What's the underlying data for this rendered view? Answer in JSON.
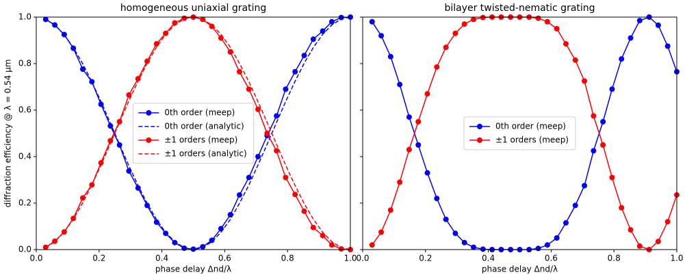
{
  "chart_data": [
    {
      "type": "line",
      "title": "homogeneous uniaxial grating",
      "xlabel": "phase delay Δnd/λ",
      "ylabel": "diffraction efficiency @ λ = 0.54 μm",
      "xlim": [
        0,
        1
      ],
      "ylim": [
        0,
        1
      ],
      "xticks": [
        {
          "value": 0,
          "label": "0.0"
        },
        0.2,
        0.4,
        0.6,
        0.8,
        {
          "value": 1,
          "label": "1.0"
        }
      ],
      "yticks": [
        {
          "value": 0,
          "label": "0.0"
        },
        0.2,
        0.4,
        0.6,
        0.8,
        {
          "value": 1,
          "label": "1.0"
        }
      ],
      "show_ytick_labels": true,
      "legend": "center",
      "x": [
        0.03,
        0.059,
        0.089,
        0.118,
        0.148,
        0.177,
        0.206,
        0.236,
        0.265,
        0.295,
        0.324,
        0.353,
        0.383,
        0.412,
        0.441,
        0.471,
        0.5,
        0.53,
        0.559,
        0.588,
        0.618,
        0.647,
        0.677,
        0.706,
        0.735,
        0.765,
        0.794,
        0.824,
        0.853,
        0.882,
        0.912,
        0.941,
        0.971,
        1.0
      ],
      "series": [
        {
          "name": "0th order (meep)",
          "color": "#0000ff",
          "linestyle": "solid",
          "marker": true,
          "values": [
            0.99,
            0.966,
            0.925,
            0.866,
            0.776,
            0.722,
            0.625,
            0.532,
            0.45,
            0.338,
            0.265,
            0.19,
            0.118,
            0.07,
            0.03,
            0.006,
            0.002,
            0.012,
            0.04,
            0.09,
            0.15,
            0.235,
            0.31,
            0.4,
            0.49,
            0.575,
            0.69,
            0.765,
            0.835,
            0.905,
            0.94,
            0.98,
            0.998,
            1.0
          ]
        },
        {
          "name": "0th order (analytic)",
          "color": "#0000ff",
          "linestyle": "dashed",
          "marker": false,
          "values": [
            0.991,
            0.966,
            0.924,
            0.869,
            0.799,
            0.721,
            0.637,
            0.544,
            0.453,
            0.36,
            0.276,
            0.199,
            0.129,
            0.074,
            0.034,
            0.008,
            0,
            0.009,
            0.034,
            0.074,
            0.13,
            0.199,
            0.278,
            0.364,
            0.453,
            0.547,
            0.637,
            0.724,
            0.802,
            0.869,
            0.926,
            0.966,
            0.992,
            1.0
          ]
        },
        {
          "name": "±1 orders (meep)",
          "color": "#ff0000",
          "linestyle": "solid",
          "marker": true,
          "values": [
            0.01,
            0.036,
            0.076,
            0.134,
            0.222,
            0.278,
            0.373,
            0.468,
            0.55,
            0.665,
            0.735,
            0.81,
            0.885,
            0.93,
            0.975,
            0.995,
            1.0,
            0.99,
            0.96,
            0.91,
            0.85,
            0.765,
            0.69,
            0.603,
            0.5,
            0.425,
            0.31,
            0.237,
            0.165,
            0.095,
            0.06,
            0.02,
            0.003,
            0.0
          ]
        },
        {
          "name": "±1 orders (analytic)",
          "color": "#ff0000",
          "linestyle": "dashed",
          "marker": false,
          "values": [
            0.009,
            0.034,
            0.076,
            0.131,
            0.201,
            0.279,
            0.363,
            0.456,
            0.547,
            0.64,
            0.724,
            0.801,
            0.871,
            0.926,
            0.966,
            0.992,
            1.0,
            0.991,
            0.966,
            0.926,
            0.87,
            0.801,
            0.722,
            0.636,
            0.547,
            0.453,
            0.363,
            0.276,
            0.198,
            0.131,
            0.074,
            0.034,
            0.008,
            0.0
          ]
        }
      ]
    },
    {
      "type": "line",
      "title": "bilayer twisted-nematic grating",
      "xlabel": "phase delay Δnd/λ",
      "xlim": [
        0,
        1
      ],
      "ylim": [
        0,
        1
      ],
      "xticks": [
        {
          "value": 0,
          "label": "0.0"
        },
        0.2,
        0.4,
        0.6,
        0.8,
        {
          "value": 1,
          "label": "1.0"
        }
      ],
      "yticks": [
        0,
        0.2,
        0.4,
        0.6,
        0.8,
        1
      ],
      "show_ytick_labels": false,
      "legend": "center",
      "x": [
        0.03,
        0.059,
        0.089,
        0.118,
        0.148,
        0.177,
        0.206,
        0.236,
        0.265,
        0.295,
        0.324,
        0.353,
        0.383,
        0.412,
        0.441,
        0.471,
        0.5,
        0.53,
        0.559,
        0.588,
        0.618,
        0.647,
        0.677,
        0.706,
        0.735,
        0.765,
        0.794,
        0.824,
        0.853,
        0.882,
        0.912,
        0.941,
        0.971,
        1.0
      ],
      "series": [
        {
          "name": "0th order (meep)",
          "color": "#0000ff",
          "linestyle": "solid",
          "marker": true,
          "values": [
            0.98,
            0.92,
            0.83,
            0.71,
            0.57,
            0.45,
            0.33,
            0.22,
            0.13,
            0.07,
            0.03,
            0.01,
            0.002,
            0,
            0,
            0,
            0,
            0,
            0.005,
            0.02,
            0.05,
            0.115,
            0.19,
            0.275,
            0.425,
            0.55,
            0.69,
            0.82,
            0.91,
            0.985,
            1.0,
            0.965,
            0.875,
            0.765
          ]
        },
        {
          "name": "±1 orders (meep)",
          "color": "#ff0000",
          "linestyle": "solid",
          "marker": true,
          "values": [
            0.02,
            0.075,
            0.17,
            0.29,
            0.43,
            0.55,
            0.67,
            0.785,
            0.87,
            0.93,
            0.97,
            0.99,
            0.998,
            1.0,
            1.0,
            1.0,
            1.0,
            1.0,
            0.995,
            0.98,
            0.95,
            0.885,
            0.815,
            0.725,
            0.575,
            0.45,
            0.31,
            0.18,
            0.085,
            0.015,
            0,
            0.035,
            0.12,
            0.235
          ]
        }
      ]
    }
  ]
}
